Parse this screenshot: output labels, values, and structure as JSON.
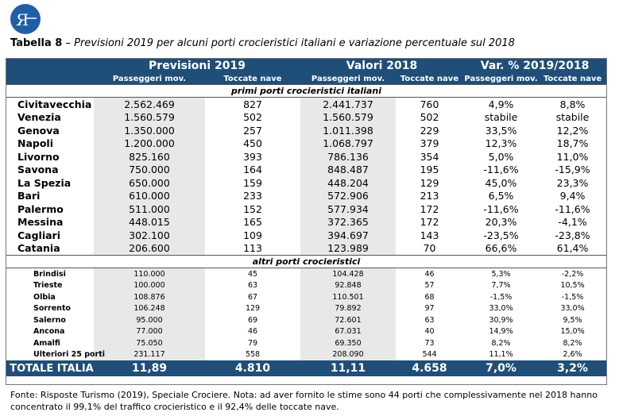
{
  "caption": {
    "label": "Tabella 8",
    "text": " – Previsioni 2019 per alcuni porti crocieristici italiani e variazione percentuale sul 2018"
  },
  "headers": {
    "group1": "Previsioni 2019",
    "group2": "Valori 2018",
    "group3": "Var. % 2019/2018",
    "passengers": "Passeggeri mov.",
    "calls": "Toccate nave"
  },
  "sections": {
    "main": "primi porti crocieristici italiani",
    "other": "altri porti crocieristici"
  },
  "main_rows": [
    [
      "Civitavecchia",
      "2.562.469",
      "827",
      "2.441.737",
      "760",
      "4,9%",
      "8,8%"
    ],
    [
      "Venezia",
      "1.560.579",
      "502",
      "1.560.579",
      "502",
      "stabile",
      "stabile"
    ],
    [
      "Genova",
      "1.350.000",
      "257",
      "1.011.398",
      "229",
      "33,5%",
      "12,2%"
    ],
    [
      "Napoli",
      "1.200.000",
      "450",
      "1.068.797",
      "379",
      "12,3%",
      "18,7%"
    ],
    [
      "Livorno",
      "825.160",
      "393",
      "786.136",
      "354",
      "5,0%",
      "11,0%"
    ],
    [
      "Savona",
      "750.000",
      "164",
      "848.487",
      "195",
      "-11,6%",
      "-15,9%"
    ],
    [
      "La Spezia",
      "650.000",
      "159",
      "448.204",
      "129",
      "45,0%",
      "23,3%"
    ],
    [
      "Bari",
      "610.000",
      "233",
      "572.906",
      "213",
      "6,5%",
      "9,4%"
    ],
    [
      "Palermo",
      "511.000",
      "152",
      "577.934",
      "172",
      "-11,6%",
      "-11,6%"
    ],
    [
      "Messina",
      "448.015",
      "165",
      "372.365",
      "172",
      "20,3%",
      "-4,1%"
    ],
    [
      "Cagliari",
      "302.100",
      "109",
      "394.697",
      "143",
      "-23,5%",
      "-23,8%"
    ],
    [
      "Catania",
      "206.600",
      "113",
      "123.989",
      "70",
      "66,6%",
      "61,4%"
    ]
  ],
  "other_rows": [
    [
      "Brindisi",
      "110.000",
      "45",
      "104.428",
      "46",
      "5,3%",
      "-2,2%"
    ],
    [
      "Trieste",
      "100.000",
      "63",
      "92.848",
      "57",
      "7,7%",
      "10,5%"
    ],
    [
      "Olbia",
      "108.876",
      "67",
      "110.501",
      "68",
      "-1,5%",
      "-1,5%"
    ],
    [
      "Sorrento",
      "106.248",
      "129",
      "79.892",
      "97",
      "33,0%",
      "33,0%"
    ],
    [
      "Salerno",
      "95.000",
      "69",
      "72.601",
      "63",
      "30,9%",
      "9,5%"
    ],
    [
      "Ancona",
      "77.000",
      "46",
      "67.031",
      "40",
      "14,9%",
      "15,0%"
    ],
    [
      "Amalfi",
      "75.050",
      "79",
      "69.350",
      "73",
      "8,2%",
      "8,2%"
    ],
    [
      "Ulteriori 25 porti",
      "231.117",
      "558",
      "208.090",
      "544",
      "11,1%",
      "2,6%"
    ]
  ],
  "total": [
    "TOTALE ITALIA",
    "11,89",
    "4.810",
    "11,11",
    "4.658",
    "7,0%",
    "3,2%"
  ],
  "note": "Fonte: Risposte Turismo (2019), Speciale Crociere. Nota: ad aver fornito le stime sono 44 porti che complessivamente nel 2018 hanno concentrato il 99,1% del traffico crocieristico e il 92,4% delle toccate nave.",
  "colors": {
    "header_bg": "#1f4e79",
    "shade": "#e8e8e8"
  },
  "logo_icon": "risposte-turismo-logo-icon"
}
